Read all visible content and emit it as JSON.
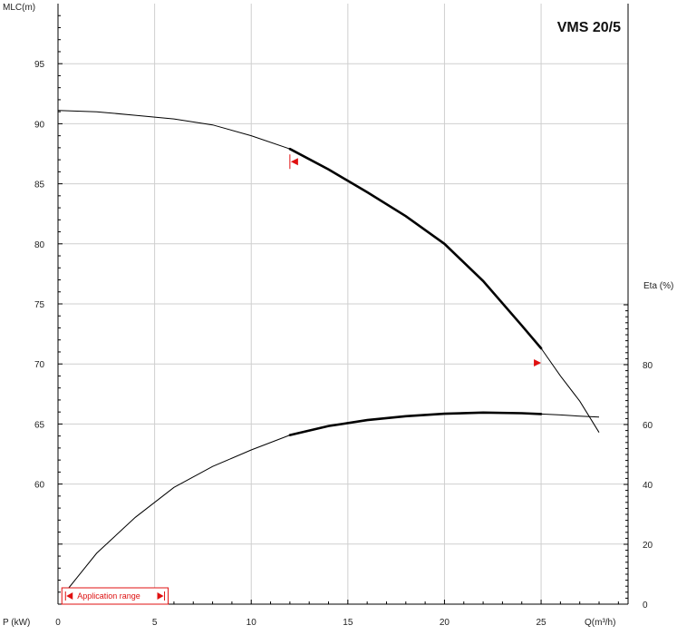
{
  "chart_data": {
    "type": "line",
    "title": "VMS 20/5",
    "ylabel": "MLC(m)",
    "y2label": "Eta (%)",
    "xlabel": "Q(m³/h)",
    "plabel": "P (kW)",
    "xlim": [
      0,
      29.5
    ],
    "ylim": [
      50.0,
      100.0
    ],
    "y2lim": [
      0,
      100
    ],
    "x_ticks": [
      0,
      5,
      10,
      15,
      20,
      25
    ],
    "y_ticks": [
      60,
      65,
      70,
      75,
      80,
      85,
      90,
      95
    ],
    "y2_ticks": [
      0,
      20,
      40,
      60,
      80
    ],
    "grid": true,
    "application_range_label": "Application range",
    "application_range": [
      0.2,
      5.7
    ],
    "operating_range": [
      12,
      25
    ],
    "accent_color": "#e01010",
    "series": [
      {
        "axis": "head",
        "points": [
          [
            0,
            91.1
          ],
          [
            2,
            91.0
          ],
          [
            4,
            90.7
          ],
          [
            6,
            90.4
          ],
          [
            8,
            89.9
          ],
          [
            10,
            89.0
          ],
          [
            12,
            87.9
          ],
          [
            14,
            86.2
          ],
          [
            16,
            84.3
          ],
          [
            18,
            82.3
          ],
          [
            20,
            80.0
          ],
          [
            22,
            76.9
          ],
          [
            24,
            73.2
          ],
          [
            25,
            71.3
          ],
          [
            26,
            69.0
          ],
          [
            27,
            66.9
          ],
          [
            28,
            64.3
          ]
        ]
      },
      {
        "axis": "eta",
        "points": [
          [
            0.5,
            5.0
          ],
          [
            2,
            17
          ],
          [
            4,
            29
          ],
          [
            6,
            39
          ],
          [
            8,
            46
          ],
          [
            10,
            51.5
          ],
          [
            12,
            56.5
          ],
          [
            14,
            59.5
          ],
          [
            16,
            61.5
          ],
          [
            18,
            62.8
          ],
          [
            20,
            63.6
          ],
          [
            22,
            64.0
          ],
          [
            24,
            63.8
          ],
          [
            25,
            63.5
          ],
          [
            26,
            63.2
          ],
          [
            27,
            62.8
          ],
          [
            28,
            62.5
          ]
        ]
      }
    ]
  }
}
